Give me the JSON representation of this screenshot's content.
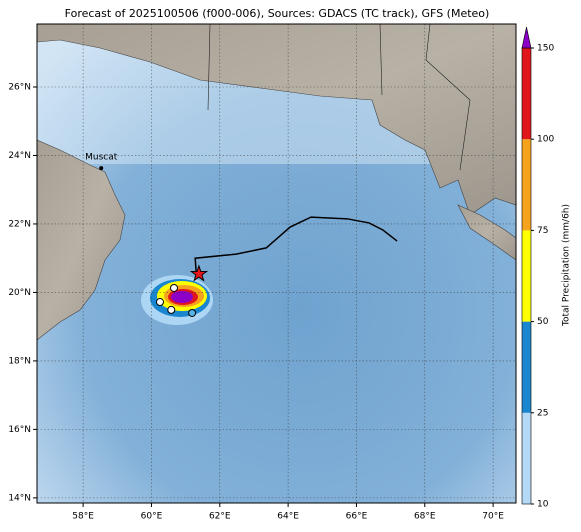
{
  "chart_data": {
    "type": "map",
    "title": "Forecast of 2025100506 (f000-006), Sources: GDACS (TC track), GFS (Meteo)",
    "xlim": [
      56.65,
      70.67
    ],
    "ylim": [
      13.85,
      27.84
    ],
    "xticks": [
      {
        "value": 58,
        "label": "58°E"
      },
      {
        "value": 60,
        "label": "60°E"
      },
      {
        "value": 62,
        "label": "62°E"
      },
      {
        "value": 64,
        "label": "64°E"
      },
      {
        "value": 66,
        "label": "66°E"
      },
      {
        "value": 68,
        "label": "68°E"
      },
      {
        "value": 70,
        "label": "70°E"
      }
    ],
    "yticks": [
      {
        "value": 14,
        "label": "14°N"
      },
      {
        "value": 16,
        "label": "16°N"
      },
      {
        "value": 18,
        "label": "18°N"
      },
      {
        "value": 20,
        "label": "20°N"
      },
      {
        "value": 22,
        "label": "22°N"
      },
      {
        "value": 24,
        "label": "24°N"
      },
      {
        "value": 26,
        "label": "26°N"
      }
    ],
    "grid": true,
    "cities": [
      {
        "name": "Muscat",
        "lon": 58.53,
        "lat": 23.63
      }
    ],
    "track": {
      "color": "#000000",
      "lon": [
        67.19,
        66.78,
        66.37,
        65.73,
        64.67,
        64.06,
        63.36,
        62.48,
        61.28,
        61.31
      ],
      "lat": [
        21.5,
        21.82,
        22.03,
        22.15,
        22.2,
        21.91,
        21.3,
        21.12,
        21.0,
        20.57
      ]
    },
    "current_position": {
      "lon": 61.39,
      "lat": 20.54,
      "color": "#e8141c"
    },
    "points": [
      {
        "lon": 60.66,
        "lat": 20.13,
        "color": "#ffffff"
      },
      {
        "lon": 60.25,
        "lat": 19.72,
        "color": "#ffffff"
      },
      {
        "lon": 60.58,
        "lat": 19.49,
        "color": "#ffffff"
      },
      {
        "lon": 61.19,
        "lat": 19.4,
        "color": "#56b4e9"
      }
    ],
    "colorbar": {
      "label": "Total Precipitation (mm/6h)",
      "ticks": [
        10,
        25,
        50,
        75,
        100,
        150
      ],
      "colors": [
        "#b3d9f7",
        "#1a86cf",
        "#ffff00",
        "#f5a31c",
        "#e0161c"
      ],
      "extend": "max",
      "extend_color": "#8c00c8"
    }
  }
}
